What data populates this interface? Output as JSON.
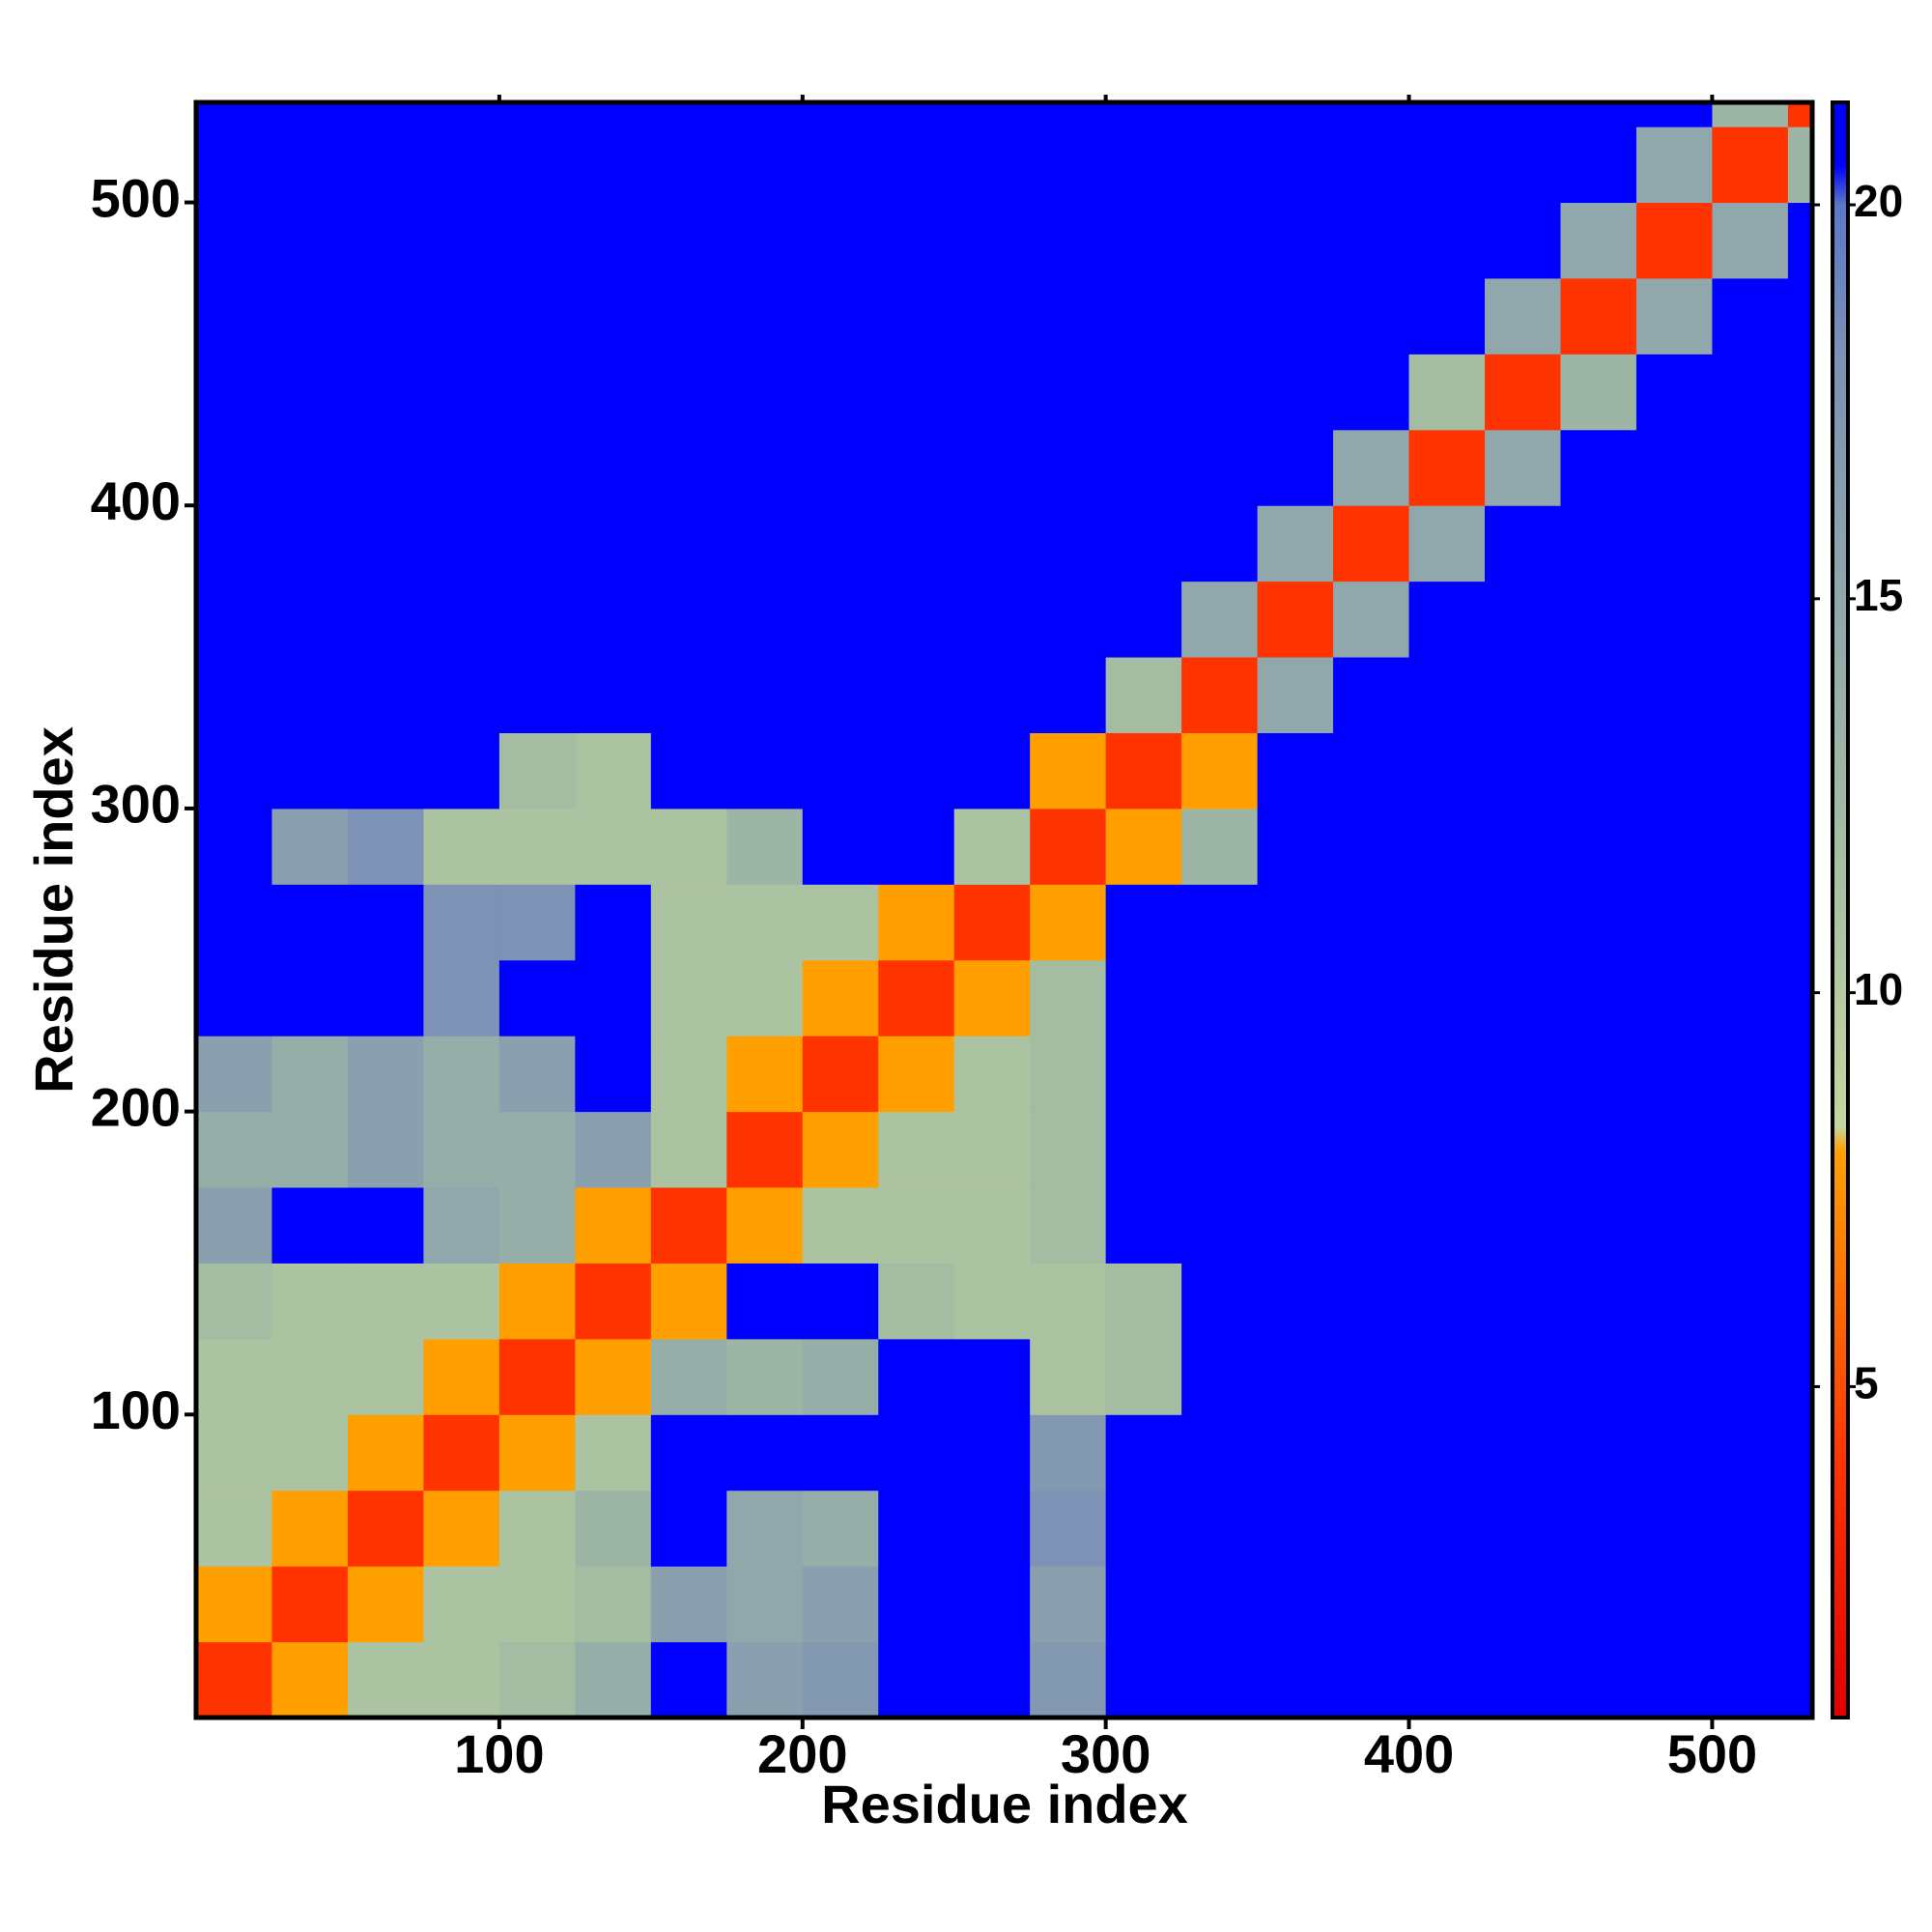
{
  "chart_data": {
    "type": "heatmap",
    "xlabel": "Residue index",
    "ylabel": "Residue index",
    "bins": [
      0,
      25,
      50,
      75,
      100,
      125,
      150,
      175,
      200,
      225,
      250,
      275,
      300,
      325,
      350,
      375,
      400,
      425,
      450,
      475,
      500,
      525,
      533
    ],
    "xlim": [
      0,
      533
    ],
    "ylim": [
      0,
      533
    ],
    "xticks": [
      100,
      200,
      300,
      400,
      500
    ],
    "yticks": [
      100,
      200,
      300,
      400,
      500
    ],
    "zlim": [
      0.8,
      21.3
    ],
    "zticks": [
      5,
      10,
      15,
      20
    ],
    "colorscale": [
      [
        0.8,
        "#e00000"
      ],
      [
        4,
        "#ff3300"
      ],
      [
        8,
        "#ffa000"
      ],
      [
        8.3,
        "#c4d6a0"
      ],
      [
        12,
        "#a3bca2"
      ],
      [
        18,
        "#7d92b4"
      ],
      [
        20,
        "#5a78c8"
      ],
      [
        20.5,
        "#0000ff"
      ],
      [
        21.3,
        "#0000ff"
      ]
    ],
    "z": [
      [
        4,
        8,
        11,
        11,
        12,
        14,
        21,
        16,
        17,
        21,
        21,
        17,
        21,
        21,
        21,
        21,
        21,
        21,
        21,
        21,
        21,
        21
      ],
      [
        8,
        4,
        8,
        11,
        11,
        12,
        16,
        15,
        16,
        21,
        21,
        16,
        21,
        21,
        21,
        21,
        21,
        21,
        21,
        21,
        21,
        21
      ],
      [
        11,
        8,
        4,
        8,
        11,
        13,
        21,
        15,
        14,
        21,
        21,
        18,
        21,
        21,
        21,
        21,
        21,
        21,
        21,
        21,
        21,
        21
      ],
      [
        11,
        11,
        8,
        4,
        8,
        11,
        21,
        21,
        21,
        21,
        21,
        17,
        21,
        21,
        21,
        21,
        21,
        21,
        21,
        21,
        21,
        21
      ],
      [
        11,
        11,
        11,
        8,
        4,
        8,
        14,
        13,
        14,
        21,
        21,
        11,
        12,
        21,
        21,
        21,
        21,
        21,
        21,
        21,
        21,
        21
      ],
      [
        12,
        11,
        11,
        11,
        8,
        4,
        8,
        21,
        21,
        12,
        11,
        11,
        12,
        21,
        21,
        21,
        21,
        21,
        21,
        21,
        21,
        21
      ],
      [
        16,
        21,
        21,
        15,
        14,
        8,
        4,
        8,
        11,
        11,
        11,
        12,
        21,
        21,
        21,
        21,
        21,
        21,
        21,
        21,
        21,
        21
      ],
      [
        14,
        14,
        16,
        14,
        14,
        16,
        11,
        4,
        8,
        11,
        11,
        12,
        21,
        21,
        21,
        21,
        21,
        21,
        21,
        21,
        21,
        21
      ],
      [
        16,
        14,
        16,
        14,
        16,
        21,
        11,
        8,
        4,
        8,
        11,
        12,
        21,
        21,
        21,
        21,
        21,
        21,
        21,
        21,
        21,
        21
      ],
      [
        21,
        21,
        21,
        18,
        21,
        21,
        11,
        11,
        8,
        4,
        8,
        12,
        21,
        21,
        21,
        21,
        21,
        21,
        21,
        21,
        21,
        21
      ],
      [
        21,
        21,
        21,
        18,
        18,
        21,
        11,
        11,
        11,
        8,
        4,
        8,
        21,
        21,
        21,
        21,
        21,
        21,
        21,
        21,
        21,
        21
      ],
      [
        21,
        16,
        18,
        11,
        11,
        11,
        11,
        13,
        21,
        21,
        11,
        4,
        8,
        13,
        21,
        21,
        21,
        21,
        21,
        21,
        21,
        21
      ],
      [
        21,
        21,
        21,
        21,
        12,
        11,
        21,
        21,
        21,
        21,
        21,
        8,
        4,
        8,
        21,
        21,
        21,
        21,
        21,
        21,
        21,
        21
      ],
      [
        21,
        21,
        21,
        21,
        21,
        21,
        21,
        21,
        21,
        21,
        21,
        21,
        12,
        4,
        15,
        21,
        21,
        21,
        21,
        21,
        21,
        21
      ],
      [
        21,
        21,
        21,
        21,
        21,
        21,
        21,
        21,
        21,
        21,
        21,
        21,
        21,
        15,
        4,
        15,
        21,
        21,
        21,
        21,
        21,
        21
      ],
      [
        21,
        21,
        21,
        21,
        21,
        21,
        21,
        21,
        21,
        21,
        21,
        21,
        21,
        21,
        15,
        4,
        15,
        21,
        21,
        21,
        21,
        21
      ],
      [
        21,
        21,
        21,
        21,
        21,
        21,
        21,
        21,
        21,
        21,
        21,
        21,
        21,
        21,
        21,
        15,
        4,
        15,
        21,
        21,
        21,
        21
      ],
      [
        21,
        21,
        21,
        21,
        21,
        21,
        21,
        21,
        21,
        21,
        21,
        21,
        21,
        21,
        21,
        21,
        12,
        4,
        13,
        21,
        21,
        21
      ],
      [
        21,
        21,
        21,
        21,
        21,
        21,
        21,
        21,
        21,
        21,
        21,
        21,
        21,
        21,
        21,
        21,
        21,
        15,
        4,
        15,
        21,
        21
      ],
      [
        21,
        21,
        21,
        21,
        21,
        21,
        21,
        21,
        21,
        21,
        21,
        21,
        21,
        21,
        21,
        21,
        21,
        21,
        15,
        4,
        15,
        21
      ],
      [
        21,
        21,
        21,
        21,
        21,
        21,
        21,
        21,
        21,
        21,
        21,
        21,
        21,
        21,
        21,
        21,
        21,
        21,
        21,
        15,
        4,
        13
      ],
      [
        21,
        21,
        21,
        21,
        21,
        21,
        21,
        21,
        21,
        21,
        21,
        21,
        21,
        21,
        21,
        21,
        21,
        21,
        21,
        21,
        13,
        4
      ]
    ]
  }
}
